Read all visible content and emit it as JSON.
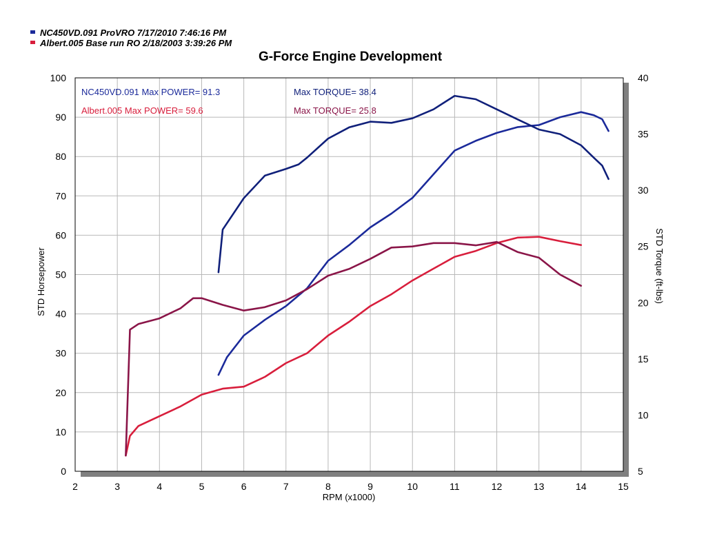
{
  "colors": {
    "nc_power": "#1b2a9a",
    "nc_torque": "#10207a",
    "al_power": "#d81e3c",
    "al_torque": "#8a1548",
    "grid": "#b8b8b8",
    "frame_shadow": "#808080"
  },
  "legend": {
    "run1": "NC450VD.091  ProVRO  7/17/2010 7:46:16 PM",
    "run2": "Albert.005  Base run RO  2/18/2003 3:39:26 PM"
  },
  "annotations": {
    "nc_power": "NC450VD.091  Max POWER= 91.3",
    "nc_torque": "Max TORQUE= 38.4",
    "al_power": "Albert.005  Max POWER= 59.6",
    "al_torque": "Max TORQUE= 25.8"
  },
  "chart_data": {
    "type": "line",
    "title": "G-Force Engine Development",
    "xlabel": "RPM (x1000)",
    "ylabel": "STD Horsepower",
    "y2label": "STD Torque (ft-lbs)",
    "xlim": [
      2,
      15
    ],
    "ylim": [
      0,
      100
    ],
    "y2lim": [
      5,
      40
    ],
    "grid": true,
    "legend_position": "top-left",
    "x_ticks": [
      "2",
      "3",
      "4",
      "5",
      "6",
      "7",
      "8",
      "9",
      "10",
      "11",
      "12",
      "13",
      "14",
      "15"
    ],
    "y_ticks": [
      "0",
      "10",
      "20",
      "30",
      "40",
      "50",
      "60",
      "70",
      "80",
      "90",
      "100"
    ],
    "y2_ticks": [
      "5",
      "10",
      "15",
      "20",
      "25",
      "30",
      "35",
      "40"
    ],
    "series": [
      {
        "name": "NC450VD.091  ProVRO  7/17/2010 7:46:16 PM",
        "metric": "Power",
        "axis": "left",
        "color": "#1b2a9a",
        "x": [
          5.4,
          5.6,
          6,
          6.5,
          7,
          7.5,
          8,
          8.5,
          9,
          9.5,
          10,
          10.5,
          11,
          11.5,
          12,
          12.5,
          13,
          13.5,
          14,
          14.3,
          14.5,
          14.65
        ],
        "y": [
          24.5,
          29,
          34.5,
          38.5,
          42,
          46.5,
          53.5,
          57.5,
          62,
          65.5,
          69.5,
          75.5,
          81.5,
          84,
          86,
          87.5,
          88,
          90,
          91.3,
          90.5,
          89.5,
          86.5
        ]
      },
      {
        "name": "NC450VD.091  ProVRO  7/17/2010 7:46:16 PM",
        "metric": "Torque",
        "axis": "right",
        "color": "#10207a",
        "x": [
          5.4,
          5.5,
          6,
          6.5,
          7,
          7.3,
          7.5,
          8,
          8.5,
          9,
          9.5,
          10,
          10.5,
          11,
          11.5,
          12,
          12.5,
          13,
          13.5,
          14,
          14.3,
          14.5,
          14.65
        ],
        "y": [
          22.7,
          26.5,
          29.3,
          31.3,
          31.9,
          32.3,
          32.9,
          34.6,
          35.6,
          36.1,
          36.0,
          36.4,
          37.2,
          38.4,
          38.1,
          37.2,
          36.3,
          35.4,
          35.0,
          34.0,
          32.9,
          32.2,
          31.0
        ]
      },
      {
        "name": "Albert.005  Base run RO  2/18/2003 3:39:26 PM",
        "metric": "Power",
        "axis": "left",
        "color": "#d81e3c",
        "x": [
          3.2,
          3.3,
          3.5,
          4,
          4.5,
          5,
          5.5,
          6,
          6.5,
          7,
          7.5,
          8,
          8.5,
          9,
          9.5,
          10,
          10.5,
          11,
          11.5,
          12,
          12.5,
          13,
          13.5,
          14
        ],
        "y": [
          4,
          9,
          11.5,
          14,
          16.5,
          19.5,
          21,
          21.5,
          24,
          27.5,
          30,
          34.5,
          38,
          42,
          45,
          48.5,
          51.5,
          54.5,
          56,
          58,
          59.4,
          59.6,
          58.5,
          57.5
        ]
      },
      {
        "name": "Albert.005  Base run RO  2/18/2003 3:39:26 PM",
        "metric": "Torque",
        "axis": "right",
        "color": "#8a1548",
        "x": [
          3.2,
          3.3,
          3.5,
          4,
          4.5,
          4.8,
          5,
          5.5,
          6,
          6.5,
          7,
          7.5,
          8,
          8.5,
          9,
          9.5,
          10,
          10.5,
          11,
          11.5,
          12,
          12.5,
          13,
          13.5,
          14
        ],
        "y": [
          6.4,
          17.6,
          18.1,
          18.6,
          19.5,
          20.4,
          20.4,
          19.8,
          19.3,
          19.6,
          20.2,
          21.2,
          22.4,
          23.0,
          23.9,
          24.9,
          25.0,
          25.3,
          25.3,
          25.1,
          25.4,
          24.5,
          24.0,
          22.5,
          21.5
        ]
      }
    ]
  }
}
